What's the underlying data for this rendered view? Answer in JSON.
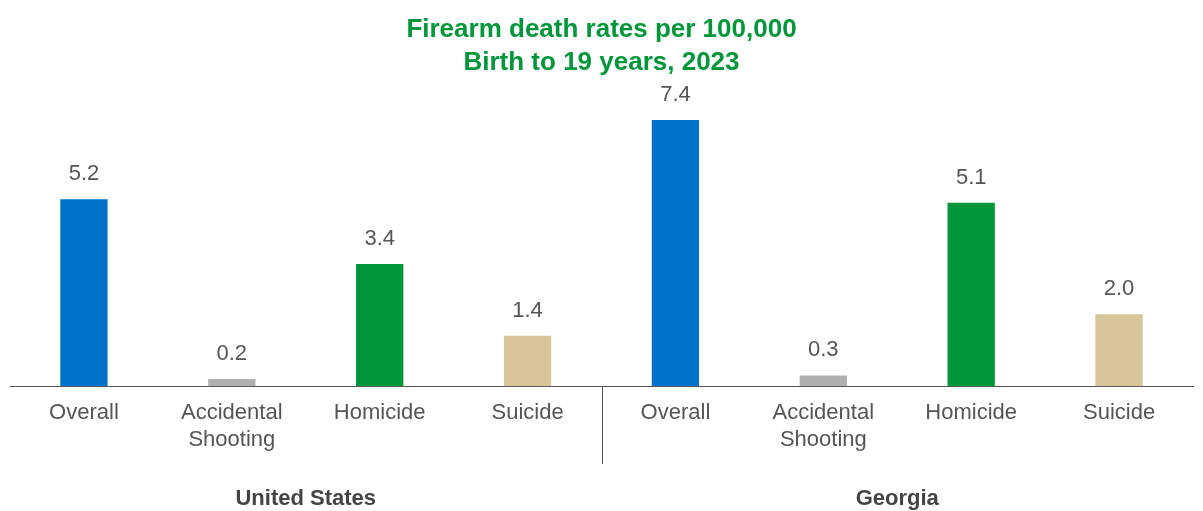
{
  "chart_data": {
    "type": "bar",
    "title": "Firearm death rates per 100,000",
    "subtitle": "Birth to 19 years, 2023",
    "categories": [
      "Overall",
      "Accidental Shooting",
      "Homicide",
      "Suicide",
      "Overall",
      "Accidental Shooting",
      "Homicide",
      "Suicide"
    ],
    "values": [
      5.2,
      0.2,
      3.4,
      1.4,
      7.4,
      0.3,
      5.1,
      2.0
    ],
    "value_labels": [
      "5.2",
      "0.2",
      "3.4",
      "1.4",
      "7.4",
      "0.3",
      "5.1",
      "2.0"
    ],
    "colors": [
      "#0070c8",
      "#b0b0b0",
      "#009639",
      "#d8c59a",
      "#0070c8",
      "#b0b0b0",
      "#009639",
      "#d8c59a"
    ],
    "annotations": [
      "United States",
      "Georgia"
    ],
    "tick_labels": "x",
    "grid": false,
    "legend": false
  }
}
